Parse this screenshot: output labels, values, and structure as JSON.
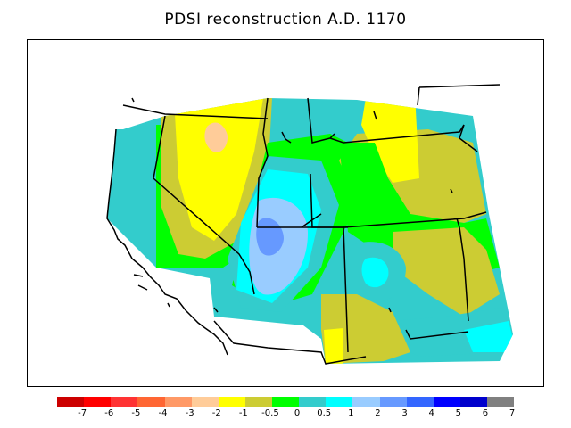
{
  "title": "PDSI reconstruction A.D. 1170",
  "legend": {
    "colors": [
      "#cc0000",
      "#ff0000",
      "#ff3333",
      "#ff6633",
      "#ff9966",
      "#ffcc99",
      "#ffff00",
      "#cccc33",
      "#00ff00",
      "#33cccc",
      "#00ffff",
      "#99ccff",
      "#6699ff",
      "#3366ff",
      "#0000ff",
      "#0000cc",
      "#808080"
    ],
    "labels": [
      "-7",
      "-6",
      "-5",
      "-4",
      "-3",
      "-2",
      "-1",
      "-0.5",
      "0",
      "0.5",
      "1",
      "2",
      "3",
      "4",
      "5",
      "6",
      "7"
    ]
  },
  "map_colors": {
    "dry_extreme": "#ffcc99",
    "very_dry": "#ffff00",
    "dry": "#cccc33",
    "near_normal": "#00ff00",
    "slightly_wet": "#33cccc",
    "wet": "#00ffff",
    "very_wet": "#99ccff",
    "wettest": "#6699ff"
  }
}
